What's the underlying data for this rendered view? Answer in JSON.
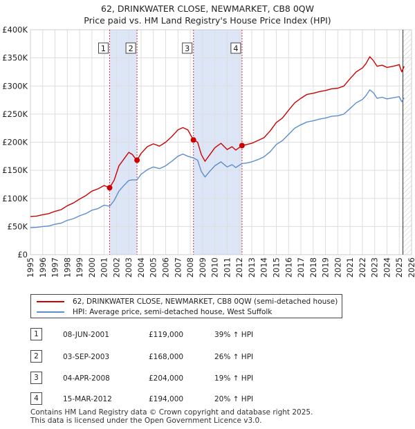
{
  "title_line1": "62, DRINKWATER CLOSE, NEWMARKET, CB8 0QW",
  "title_line2": "Price paid vs. HM Land Registry's House Price Index (HPI)",
  "chart_data": {
    "type": "line",
    "title": "62, DRINKWATER CLOSE, NEWMARKET, CB8 0QW — Price paid vs. HM Land Registry's House Price Index (HPI)",
    "xlabel": "",
    "ylabel": "",
    "xlim": [
      1995,
      2026
    ],
    "ylim": [
      0,
      400000
    ],
    "y_ticks": [
      {
        "value": 0,
        "label": "£0"
      },
      {
        "value": 50000,
        "label": "£50K"
      },
      {
        "value": 100000,
        "label": "£100K"
      },
      {
        "value": 150000,
        "label": "£150K"
      },
      {
        "value": 200000,
        "label": "£200K"
      },
      {
        "value": 250000,
        "label": "£250K"
      },
      {
        "value": 300000,
        "label": "£300K"
      },
      {
        "value": 350000,
        "label": "£350K"
      },
      {
        "value": 400000,
        "label": "£400K"
      }
    ],
    "x_ticks": [
      "1995",
      "1996",
      "1997",
      "1998",
      "1999",
      "2000",
      "2001",
      "2002",
      "2003",
      "2004",
      "2005",
      "2006",
      "2007",
      "2008",
      "2009",
      "2010",
      "2011",
      "2012",
      "2013",
      "2014",
      "2015",
      "2016",
      "2017",
      "2018",
      "2019",
      "2020",
      "2021",
      "2022",
      "2023",
      "2024",
      "2025",
      "2026"
    ],
    "grid": true,
    "series": [
      {
        "name": "62, DRINKWATER CLOSE, NEWMARKET, CB8 0QW (semi-detached house)",
        "color": "#cc0000",
        "x": [
          1995.0,
          1995.5,
          1996.0,
          1996.5,
          1997.0,
          1997.5,
          1998.0,
          1998.5,
          1999.0,
          1999.5,
          2000.0,
          2000.5,
          2001.0,
          2001.44,
          2001.8,
          2002.2,
          2002.6,
          2003.0,
          2003.3,
          2003.5,
          2003.67,
          2004.0,
          2004.5,
          2005.0,
          2005.5,
          2006.0,
          2006.5,
          2007.0,
          2007.4,
          2007.8,
          2008.26,
          2008.6,
          2008.9,
          2009.2,
          2009.5,
          2010.0,
          2010.5,
          2011.0,
          2011.4,
          2011.7,
          2012.21,
          2012.6,
          2013.0,
          2013.5,
          2014.0,
          2014.5,
          2015.0,
          2015.5,
          2016.0,
          2016.5,
          2017.0,
          2017.5,
          2018.0,
          2018.5,
          2019.0,
          2019.5,
          2020.0,
          2020.5,
          2021.0,
          2021.5,
          2022.0,
          2022.3,
          2022.6,
          2022.9,
          2023.2,
          2023.6,
          2024.0,
          2024.5,
          2025.0,
          2025.2,
          2025.4
        ],
        "values": [
          68000,
          68500,
          71000,
          73000,
          77000,
          80000,
          87000,
          92000,
          99000,
          105000,
          113000,
          117000,
          123000,
          119000,
          132000,
          158000,
          170000,
          182000,
          178000,
          172000,
          168000,
          180000,
          192000,
          197000,
          193000,
          200000,
          210000,
          222000,
          226000,
          222000,
          204000,
          200000,
          178000,
          166000,
          175000,
          190000,
          198000,
          187000,
          192000,
          186000,
          194000,
          196000,
          198000,
          203000,
          208000,
          220000,
          235000,
          243000,
          257000,
          270000,
          278000,
          285000,
          287000,
          290000,
          292000,
          295000,
          296000,
          300000,
          313000,
          325000,
          332000,
          340000,
          352000,
          345000,
          335000,
          337000,
          333000,
          335000,
          338000,
          325000,
          335000
        ]
      },
      {
        "name": "HPI: Average price, semi-detached house, West Suffolk",
        "color": "#5b8ecf",
        "x": [
          1995.0,
          1995.5,
          1996.0,
          1996.5,
          1997.0,
          1997.5,
          1998.0,
          1998.5,
          1999.0,
          1999.5,
          2000.0,
          2000.5,
          2001.0,
          2001.44,
          2001.8,
          2002.2,
          2002.6,
          2003.0,
          2003.3,
          2003.67,
          2004.0,
          2004.5,
          2005.0,
          2005.5,
          2006.0,
          2006.5,
          2007.0,
          2007.4,
          2007.8,
          2008.26,
          2008.6,
          2008.9,
          2009.2,
          2009.5,
          2010.0,
          2010.5,
          2011.0,
          2011.4,
          2011.7,
          2012.21,
          2012.6,
          2013.0,
          2013.5,
          2014.0,
          2014.5,
          2015.0,
          2015.5,
          2016.0,
          2016.5,
          2017.0,
          2017.5,
          2018.0,
          2018.5,
          2019.0,
          2019.5,
          2020.0,
          2020.5,
          2021.0,
          2021.5,
          2022.0,
          2022.3,
          2022.6,
          2022.9,
          2023.2,
          2023.6,
          2024.0,
          2024.5,
          2025.0,
          2025.2,
          2025.4
        ],
        "values": [
          48000,
          48500,
          50000,
          51000,
          54000,
          56000,
          61000,
          64000,
          69000,
          73000,
          79000,
          82000,
          88000,
          86000,
          96000,
          113000,
          123000,
          132000,
          133000,
          133000,
          143000,
          151000,
          156000,
          153000,
          158000,
          166000,
          175000,
          179000,
          175000,
          172000,
          168000,
          148000,
          138000,
          146000,
          158000,
          165000,
          156000,
          160000,
          155000,
          162000,
          163000,
          165000,
          169000,
          174000,
          183000,
          196000,
          203000,
          214000,
          225000,
          231000,
          236000,
          238000,
          241000,
          243000,
          246000,
          247000,
          250000,
          260000,
          270000,
          276000,
          283000,
          293000,
          288000,
          278000,
          280000,
          277000,
          279000,
          281000,
          272000,
          279000
        ]
      }
    ],
    "transactions": [
      {
        "label": "1",
        "x": 2001.44,
        "value": 119000,
        "date": "08-JUN-2001",
        "price": "£119,000",
        "hpi": "39% ↑ HPI"
      },
      {
        "label": "2",
        "x": 2003.67,
        "value": 168000,
        "date": "03-SEP-2003",
        "price": "£168,000",
        "hpi": "26% ↑ HPI"
      },
      {
        "label": "3",
        "x": 2008.26,
        "value": 204000,
        "date": "04-APR-2008",
        "price": "£204,000",
        "hpi": "19% ↑ HPI"
      },
      {
        "label": "4",
        "x": 2012.21,
        "value": 194000,
        "date": "15-MAR-2012",
        "price": "£194,000",
        "hpi": "20% ↑ HPI"
      }
    ],
    "shaded_spans": [
      [
        2001.44,
        2003.67
      ],
      [
        2008.26,
        2012.21
      ]
    ],
    "forecast_start": 2025.3,
    "legend_position": "below-chart"
  },
  "legend": {
    "property_label": "62, DRINKWATER CLOSE, NEWMARKET, CB8 0QW (semi-detached house)",
    "hpi_label": "HPI: Average price, semi-detached house, West Suffolk"
  },
  "colors": {
    "property": "#cc0000",
    "hpi": "#5b8ecf",
    "shade": "#dde6f6",
    "grid": "#dddddd"
  },
  "footer": {
    "line1": "Contains HM Land Registry data © Crown copyright and database right 2025.",
    "line2": "This data is licensed under the Open Government Licence v3.0."
  }
}
